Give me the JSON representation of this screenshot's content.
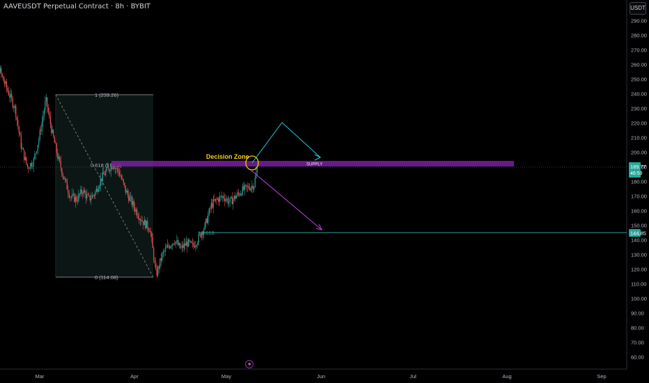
{
  "header": {
    "title": "AAVEUSDT Perpetual Contract · 8h · BYBIT",
    "currency_button": "USDT"
  },
  "colors": {
    "background": "#000000",
    "up": "#26a69a",
    "down": "#ef5350",
    "supply_zone": "#7b1fa2",
    "cyan_line": "#26c6da",
    "yellow": "#f5d000",
    "magenta": "#c040e0",
    "price_tag": "#26a69a"
  },
  "chart_data": {
    "type": "candlestick",
    "title": "AAVEUSDT Perpetual Contract · 8h · BYBIT",
    "ylim": [
      55,
      295
    ],
    "y_ticks": [
      60,
      70,
      80,
      90,
      100,
      110,
      120,
      130,
      140,
      150,
      160,
      170,
      180,
      190,
      200,
      210,
      220,
      230,
      240,
      250,
      260,
      270,
      280,
      290
    ],
    "x_ticks": [
      "Mar",
      "Apr",
      "May",
      "Jun",
      "Jul",
      "Aug",
      "Sep"
    ],
    "price_path": [
      [
        "2025-02-11",
        258
      ],
      [
        "2025-02-13",
        272
      ],
      [
        "2025-02-15",
        262
      ],
      [
        "2025-02-17",
        250
      ],
      [
        "2025-02-19",
        240
      ],
      [
        "2025-02-21",
        230
      ],
      [
        "2025-02-23",
        204
      ],
      [
        "2025-02-25",
        190
      ],
      [
        "2025-02-27",
        194
      ],
      [
        "2025-03-01",
        212
      ],
      [
        "2025-03-03",
        236
      ],
      [
        "2025-03-05",
        214
      ],
      [
        "2025-03-07",
        196
      ],
      [
        "2025-03-09",
        182
      ],
      [
        "2025-03-11",
        170
      ],
      [
        "2025-03-13",
        168
      ],
      [
        "2025-03-15",
        174
      ],
      [
        "2025-03-17",
        168
      ],
      [
        "2025-03-19",
        172
      ],
      [
        "2025-03-21",
        182
      ],
      [
        "2025-03-23",
        188
      ],
      [
        "2025-03-25",
        192
      ],
      [
        "2025-03-27",
        186
      ],
      [
        "2025-03-29",
        174
      ],
      [
        "2025-03-31",
        166
      ],
      [
        "2025-04-02",
        158
      ],
      [
        "2025-04-04",
        152
      ],
      [
        "2025-04-06",
        148
      ],
      [
        "2025-04-08",
        116
      ],
      [
        "2025-04-10",
        130
      ],
      [
        "2025-04-12",
        136
      ],
      [
        "2025-04-14",
        140
      ],
      [
        "2025-04-16",
        134
      ],
      [
        "2025-04-18",
        138
      ],
      [
        "2025-04-20",
        136
      ],
      [
        "2025-04-22",
        142
      ],
      [
        "2025-04-24",
        150
      ],
      [
        "2025-04-26",
        164
      ],
      [
        "2025-04-28",
        168
      ],
      [
        "2025-04-30",
        170
      ],
      [
        "2025-05-02",
        166
      ],
      [
        "2025-05-04",
        170
      ],
      [
        "2025-05-06",
        174
      ],
      [
        "2025-05-08",
        176
      ],
      [
        "2025-05-10",
        178
      ],
      [
        "2025-05-11",
        190
      ]
    ],
    "fibonacci": [
      {
        "level": "1 (239.26)",
        "price": 239.26
      },
      {
        "level": "0.618 (190.3)",
        "price": 190.3
      },
      {
        "level": "0 (114.08)",
        "price": 114.08
      }
    ],
    "annotations": {
      "decision_zone": "Decision Zone",
      "supply": "SUPPLY",
      "fib_618": "0.618"
    },
    "supply_zone": {
      "low": 188.5,
      "high": 192.5
    },
    "horizontal_line": 144.85,
    "current_price": "189.77",
    "countdown": "46:59",
    "line_label": "144.85"
  }
}
